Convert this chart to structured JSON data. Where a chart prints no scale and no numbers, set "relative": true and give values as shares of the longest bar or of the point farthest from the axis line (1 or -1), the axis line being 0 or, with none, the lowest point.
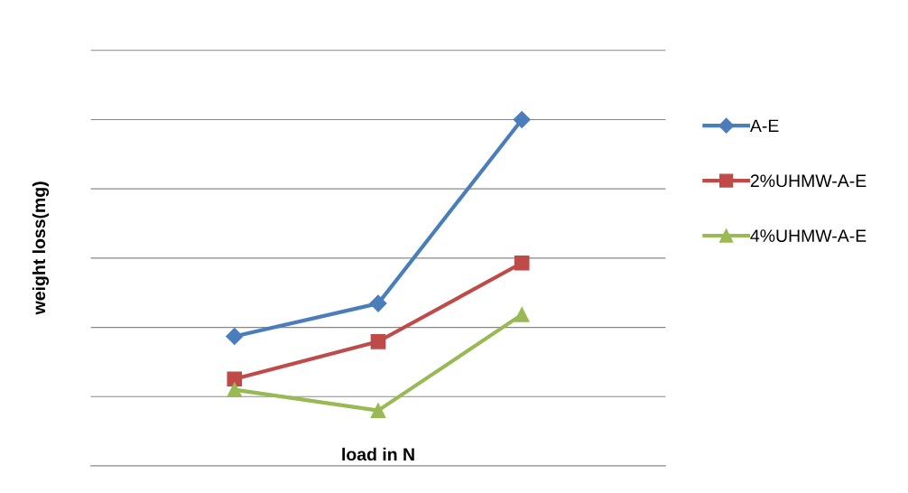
{
  "chart_data": {
    "type": "line",
    "relative": true,
    "xlabel": "load in N",
    "ylabel": "weight loss(mg)",
    "categories": [
      null,
      null,
      null
    ],
    "grid": "y",
    "legend": "right",
    "series": [
      {
        "name": "A-E",
        "color": "#4a7ebb",
        "marker": "diamond",
        "values": [
          0.374,
          0.469,
          1
        ]
      },
      {
        "name": "2%UHMW-A-E",
        "color": "#be4b48",
        "marker": "square",
        "values": [
          0.251,
          0.359,
          0.586
        ]
      },
      {
        "name": "4%UHMW-A-E",
        "color": "#98b954",
        "marker": "triangle",
        "values": [
          0.22,
          0.16,
          0.437
        ]
      }
    ]
  }
}
